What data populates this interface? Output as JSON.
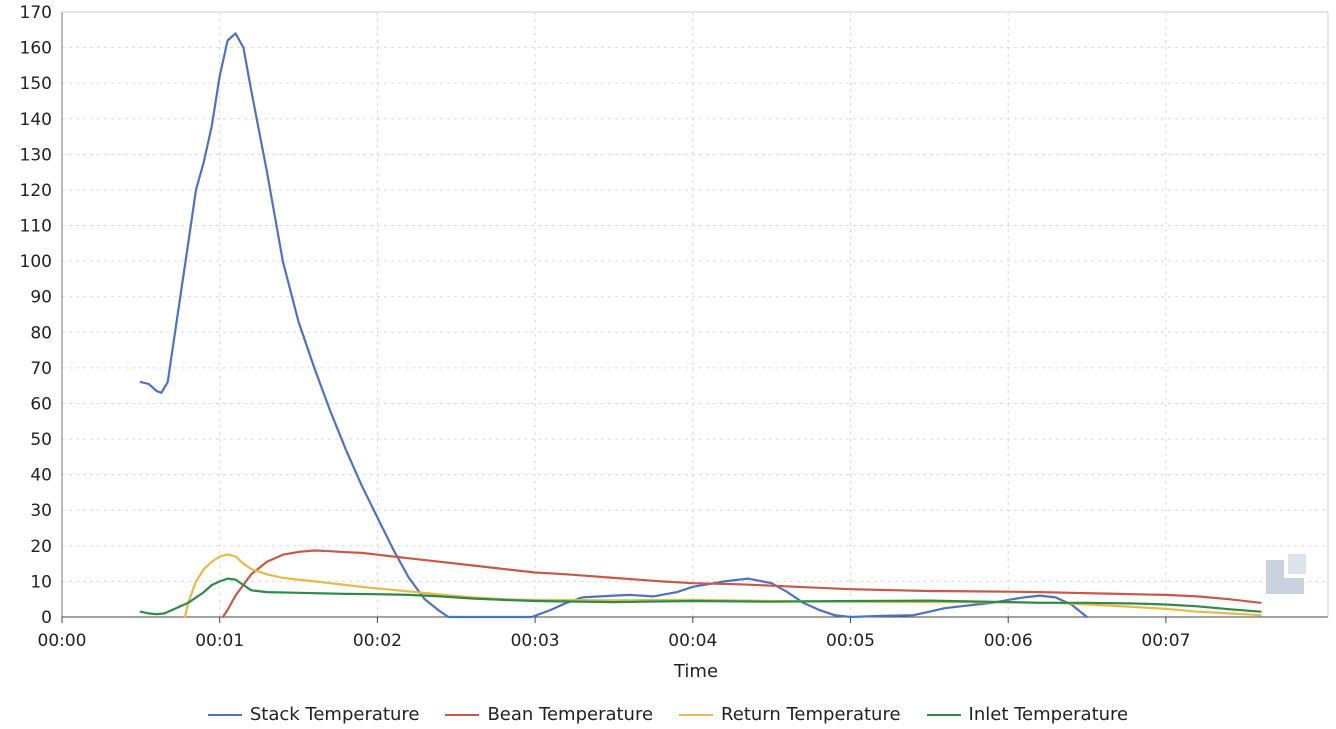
{
  "chart_data": {
    "type": "line",
    "title": "",
    "xlabel": "Time",
    "ylabel": "",
    "xlim": [
      0,
      7.9
    ],
    "ylim": [
      0,
      170
    ],
    "grid": true,
    "legend_position": "bottom",
    "x_ticks": [
      {
        "value": 0,
        "label": "00:00"
      },
      {
        "value": 1,
        "label": "00:01"
      },
      {
        "value": 2,
        "label": "00:02"
      },
      {
        "value": 3,
        "label": "00:03"
      },
      {
        "value": 4,
        "label": "00:04"
      },
      {
        "value": 5,
        "label": "00:05"
      },
      {
        "value": 6,
        "label": "00:06"
      },
      {
        "value": 7,
        "label": "00:07"
      }
    ],
    "y_ticks": [
      0,
      10,
      20,
      30,
      40,
      50,
      60,
      70,
      80,
      90,
      100,
      110,
      120,
      130,
      140,
      150,
      160,
      170
    ],
    "series": [
      {
        "name": "Stack Temperature",
        "color": "#4e72c1",
        "points": [
          [
            0.5,
            66
          ],
          [
            0.55,
            65.5
          ],
          [
            0.6,
            63.5
          ],
          [
            0.63,
            63
          ],
          [
            0.67,
            66
          ],
          [
            0.7,
            75
          ],
          [
            0.75,
            90
          ],
          [
            0.8,
            105
          ],
          [
            0.85,
            120
          ],
          [
            0.9,
            128
          ],
          [
            0.95,
            138
          ],
          [
            1.0,
            152
          ],
          [
            1.05,
            162
          ],
          [
            1.1,
            164
          ],
          [
            1.15,
            160
          ],
          [
            1.2,
            148
          ],
          [
            1.3,
            125
          ],
          [
            1.4,
            100
          ],
          [
            1.5,
            83
          ],
          [
            1.6,
            70
          ],
          [
            1.7,
            58
          ],
          [
            1.8,
            47
          ],
          [
            1.9,
            37
          ],
          [
            2.0,
            28
          ],
          [
            2.1,
            19
          ],
          [
            2.2,
            11
          ],
          [
            2.3,
            5
          ],
          [
            2.4,
            1.5
          ],
          [
            2.45,
            0
          ],
          [
            2.98,
            0
          ],
          [
            3.1,
            2
          ],
          [
            3.2,
            4
          ],
          [
            3.3,
            5.5
          ],
          [
            3.5,
            6
          ],
          [
            3.6,
            6.2
          ],
          [
            3.75,
            5.8
          ],
          [
            3.9,
            7
          ],
          [
            4.0,
            8.5
          ],
          [
            4.2,
            10
          ],
          [
            4.35,
            10.8
          ],
          [
            4.5,
            9.5
          ],
          [
            4.6,
            7
          ],
          [
            4.7,
            4
          ],
          [
            4.8,
            2
          ],
          [
            4.9,
            0.5
          ],
          [
            5.0,
            0
          ],
          [
            5.2,
            0.3
          ],
          [
            5.4,
            0.5
          ],
          [
            5.5,
            1.5
          ],
          [
            5.6,
            2.5
          ],
          [
            5.7,
            3
          ],
          [
            5.8,
            3.5
          ],
          [
            5.9,
            4
          ],
          [
            6.0,
            4.8
          ],
          [
            6.1,
            5.5
          ],
          [
            6.2,
            6
          ],
          [
            6.3,
            5.5
          ],
          [
            6.4,
            3.5
          ],
          [
            6.5,
            0
          ]
        ]
      },
      {
        "name": "Bean Temperature",
        "color": "#c8584a",
        "points": [
          [
            1.02,
            0
          ],
          [
            1.05,
            2
          ],
          [
            1.1,
            6
          ],
          [
            1.2,
            12
          ],
          [
            1.3,
            15.5
          ],
          [
            1.4,
            17.5
          ],
          [
            1.5,
            18.3
          ],
          [
            1.6,
            18.7
          ],
          [
            1.7,
            18.5
          ],
          [
            1.8,
            18.2
          ],
          [
            1.9,
            18
          ],
          [
            2.0,
            17.5
          ],
          [
            2.2,
            16.5
          ],
          [
            2.4,
            15.5
          ],
          [
            2.6,
            14.5
          ],
          [
            2.8,
            13.5
          ],
          [
            3.0,
            12.5
          ],
          [
            3.2,
            12
          ],
          [
            3.5,
            11
          ],
          [
            3.8,
            10
          ],
          [
            4.0,
            9.5
          ],
          [
            4.3,
            9.2
          ],
          [
            4.5,
            8.8
          ],
          [
            4.8,
            8.2
          ],
          [
            5.0,
            7.8
          ],
          [
            5.3,
            7.5
          ],
          [
            5.5,
            7.3
          ],
          [
            5.8,
            7.2
          ],
          [
            6.0,
            7.1
          ],
          [
            6.2,
            7
          ],
          [
            6.4,
            6.8
          ],
          [
            6.7,
            6.5
          ],
          [
            7.0,
            6.2
          ],
          [
            7.2,
            5.8
          ],
          [
            7.4,
            5
          ],
          [
            7.6,
            4
          ]
        ]
      },
      {
        "name": "Return Temperature",
        "color": "#e6bb48",
        "points": [
          [
            0.78,
            0
          ],
          [
            0.8,
            4
          ],
          [
            0.85,
            10
          ],
          [
            0.9,
            13.5
          ],
          [
            0.95,
            15.5
          ],
          [
            1.0,
            17
          ],
          [
            1.05,
            17.6
          ],
          [
            1.1,
            17
          ],
          [
            1.15,
            15
          ],
          [
            1.2,
            13.5
          ],
          [
            1.3,
            12
          ],
          [
            1.4,
            11
          ],
          [
            1.5,
            10.5
          ],
          [
            1.6,
            10
          ],
          [
            1.7,
            9.5
          ],
          [
            1.8,
            9
          ],
          [
            1.9,
            8.5
          ],
          [
            2.0,
            8
          ],
          [
            2.2,
            7.2
          ],
          [
            2.4,
            6.3
          ],
          [
            2.6,
            5.5
          ],
          [
            2.8,
            5
          ],
          [
            3.0,
            4.8
          ],
          [
            3.5,
            4.7
          ],
          [
            4.0,
            4.8
          ],
          [
            4.5,
            4.5
          ],
          [
            5.0,
            4.3
          ],
          [
            5.5,
            4.2
          ],
          [
            6.0,
            4.2
          ],
          [
            6.3,
            4
          ],
          [
            6.5,
            3.5
          ],
          [
            6.8,
            2.8
          ],
          [
            7.0,
            2.3
          ],
          [
            7.2,
            1.5
          ],
          [
            7.4,
            1
          ],
          [
            7.6,
            0.5
          ]
        ]
      },
      {
        "name": "Inlet Temperature",
        "color": "#2f8a4a",
        "points": [
          [
            0.5,
            1.5
          ],
          [
            0.55,
            1
          ],
          [
            0.6,
            0.8
          ],
          [
            0.65,
            1
          ],
          [
            0.7,
            2
          ],
          [
            0.8,
            4
          ],
          [
            0.9,
            7
          ],
          [
            0.95,
            9
          ],
          [
            1.0,
            10
          ],
          [
            1.05,
            10.8
          ],
          [
            1.1,
            10.5
          ],
          [
            1.15,
            9
          ],
          [
            1.2,
            7.5
          ],
          [
            1.3,
            7
          ],
          [
            1.5,
            6.8
          ],
          [
            1.8,
            6.5
          ],
          [
            2.0,
            6.4
          ],
          [
            2.2,
            6.2
          ],
          [
            2.4,
            5.8
          ],
          [
            2.6,
            5.2
          ],
          [
            2.8,
            4.8
          ],
          [
            3.0,
            4.5
          ],
          [
            3.5,
            4.2
          ],
          [
            4.0,
            4.5
          ],
          [
            4.5,
            4.3
          ],
          [
            5.0,
            4.5
          ],
          [
            5.5,
            4.6
          ],
          [
            6.0,
            4.2
          ],
          [
            6.2,
            4
          ],
          [
            6.5,
            4
          ],
          [
            6.8,
            3.8
          ],
          [
            7.0,
            3.5
          ],
          [
            7.2,
            3
          ],
          [
            7.4,
            2.2
          ],
          [
            7.6,
            1.5
          ]
        ]
      }
    ]
  }
}
